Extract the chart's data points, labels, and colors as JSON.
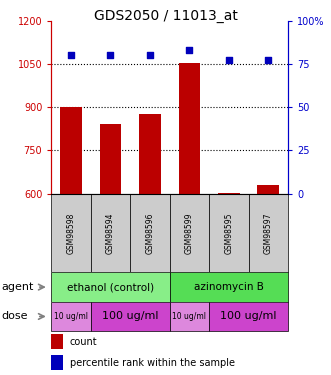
{
  "title": "GDS2050 / 11013_at",
  "samples": [
    "GSM98598",
    "GSM98594",
    "GSM98596",
    "GSM98599",
    "GSM98595",
    "GSM98597"
  ],
  "counts": [
    902,
    840,
    878,
    1052,
    603,
    630
  ],
  "percentiles": [
    80,
    80,
    80,
    83,
    77,
    77
  ],
  "ylim_left": [
    600,
    1200
  ],
  "ylim_right": [
    0,
    100
  ],
  "yticks_left": [
    600,
    750,
    900,
    1050,
    1200
  ],
  "yticks_right": [
    0,
    25,
    50,
    75,
    100
  ],
  "bar_color": "#bb0000",
  "dot_color": "#0000bb",
  "agent_groups": [
    {
      "label": "ethanol (control)",
      "span": [
        0,
        3
      ],
      "color": "#88ee88"
    },
    {
      "label": "azinomycin B",
      "span": [
        3,
        6
      ],
      "color": "#55dd55"
    }
  ],
  "dose_groups": [
    {
      "label": "10 ug/ml",
      "span": [
        0,
        1
      ],
      "color": "#dd88dd",
      "fontsize": 5.5
    },
    {
      "label": "100 ug/ml",
      "span": [
        1,
        3
      ],
      "color": "#cc44cc",
      "fontsize": 8
    },
    {
      "label": "10 ug/ml",
      "span": [
        3,
        4
      ],
      "color": "#dd88dd",
      "fontsize": 5.5
    },
    {
      "label": "100 ug/ml",
      "span": [
        4,
        6
      ],
      "color": "#cc44cc",
      "fontsize": 8
    }
  ],
  "legend_items": [
    {
      "label": "count",
      "color": "#bb0000"
    },
    {
      "label": "percentile rank within the sample",
      "color": "#0000bb"
    }
  ],
  "sample_box_color": "#cccccc",
  "grid_color": "#555555",
  "title_color": "#000000",
  "left_axis_color": "#cc0000",
  "right_axis_color": "#0000cc",
  "bar_width": 0.55
}
